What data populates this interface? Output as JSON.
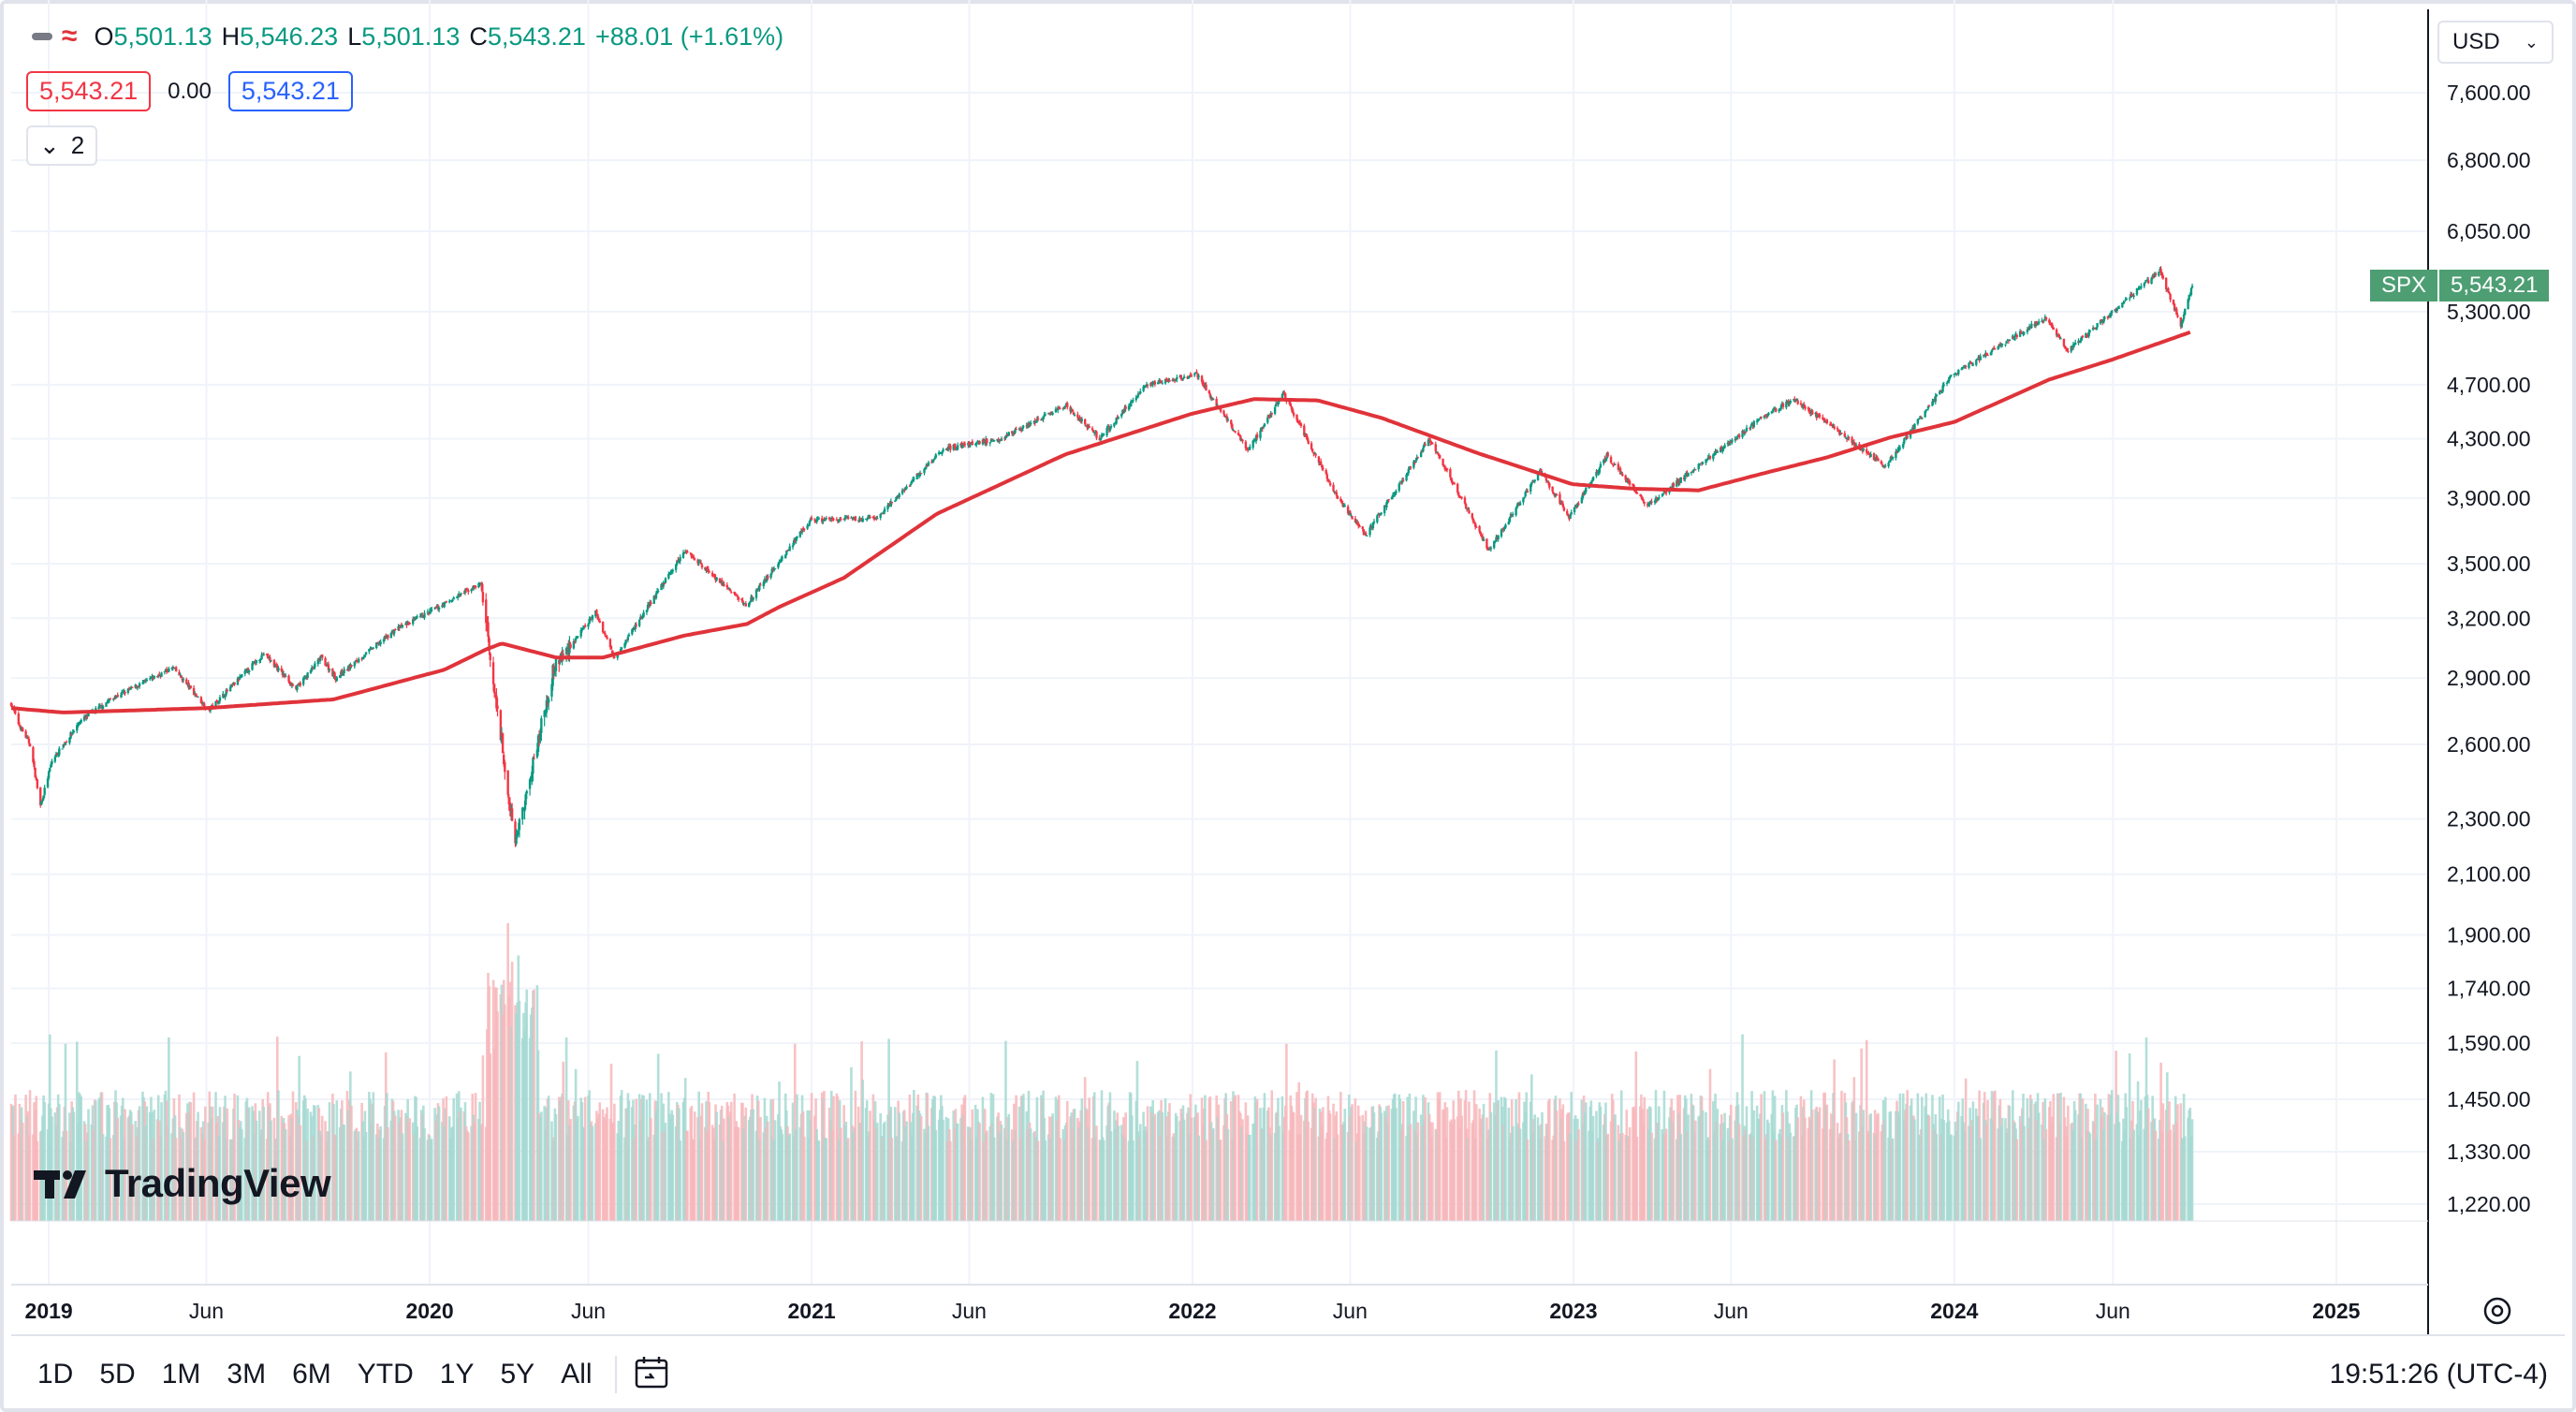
{
  "ohlc": {
    "open_label": "O",
    "open": "5,501.13",
    "high_label": "H",
    "high": "5,546.23",
    "low_label": "L",
    "low": "5,501.13",
    "close_label": "C",
    "close": "5,543.21",
    "change": "+88.01 (+1.61%)"
  },
  "indicator_values": {
    "red": "5,543.21",
    "middle": "0.00",
    "blue": "5,543.21"
  },
  "collapse": {
    "count": "2"
  },
  "currency": "USD",
  "price_badge": {
    "symbol": "SPX",
    "price": "5,543.21"
  },
  "watermark": "TradingView",
  "range_buttons": [
    "1D",
    "5D",
    "1M",
    "3M",
    "6M",
    "YTD",
    "1Y",
    "5Y",
    "All"
  ],
  "clock": "19:51:26 (UTC-4)",
  "colors": {
    "up": "#089981",
    "down": "#f23645",
    "ma": "#e0333a",
    "vol_up": "#a6d9d2",
    "vol_down": "#f7b7bb",
    "badge": "#4e9e73"
  },
  "chart_data": {
    "type": "candlestick",
    "symbol": "SPX",
    "scale": "log",
    "y_ticks": [
      7600,
      6800,
      6050,
      5300,
      4700,
      4300,
      3900,
      3500,
      3200,
      2900,
      2600,
      2300,
      2100,
      1900,
      1740,
      1590,
      1450,
      1330,
      1220
    ],
    "y_tick_labels": [
      "7,600.00",
      "6,800.00",
      "6,050.00",
      "5,300.00",
      "4,700.00",
      "4,300.00",
      "3,900.00",
      "3,500.00",
      "3,200.00",
      "2,900.00",
      "2,600.00",
      "2,300.00",
      "2,100.00",
      "1,900.00",
      "1,740.00",
      "1,590.00",
      "1,450.00",
      "1,330.00",
      "1,220.00"
    ],
    "x_ticks": [
      {
        "date": "2019-01-01",
        "label": "2019",
        "bold": true
      },
      {
        "date": "2019-06-01",
        "label": "Jun",
        "bold": false
      },
      {
        "date": "2020-01-01",
        "label": "2020",
        "bold": true
      },
      {
        "date": "2020-06-01",
        "label": "Jun",
        "bold": false
      },
      {
        "date": "2021-01-01",
        "label": "2021",
        "bold": true
      },
      {
        "date": "2021-06-01",
        "label": "Jun",
        "bold": false
      },
      {
        "date": "2022-01-01",
        "label": "2022",
        "bold": true
      },
      {
        "date": "2022-06-01",
        "label": "Jun",
        "bold": false
      },
      {
        "date": "2023-01-01",
        "label": "2023",
        "bold": true
      },
      {
        "date": "2023-06-01",
        "label": "Jun",
        "bold": false
      },
      {
        "date": "2024-01-01",
        "label": "2024",
        "bold": true
      },
      {
        "date": "2024-06-01",
        "label": "Jun",
        "bold": false
      },
      {
        "date": "2025-01-01",
        "label": "2025",
        "bold": true
      }
    ],
    "x_range": [
      "2018-11-26",
      "2025-03-30"
    ],
    "price_path": [
      [
        "2018-11-26",
        2780
      ],
      [
        "2018-12-03",
        2690
      ],
      [
        "2018-12-14",
        2600
      ],
      [
        "2018-12-24",
        2350
      ],
      [
        "2019-01-04",
        2530
      ],
      [
        "2019-01-31",
        2700
      ],
      [
        "2019-03-01",
        2800
      ],
      [
        "2019-04-30",
        2950
      ],
      [
        "2019-06-03",
        2750
      ],
      [
        "2019-07-26",
        3020
      ],
      [
        "2019-08-26",
        2850
      ],
      [
        "2019-09-19",
        3000
      ],
      [
        "2019-10-03",
        2900
      ],
      [
        "2019-11-29",
        3140
      ],
      [
        "2019-12-31",
        3230
      ],
      [
        "2020-02-19",
        3390
      ],
      [
        "2020-03-23",
        2200
      ],
      [
        "2020-04-29",
        2950
      ],
      [
        "2020-06-08",
        3230
      ],
      [
        "2020-06-26",
        3000
      ],
      [
        "2020-09-02",
        3580
      ],
      [
        "2020-10-30",
        3270
      ],
      [
        "2020-12-31",
        3760
      ],
      [
        "2021-03-04",
        3770
      ],
      [
        "2021-05-07",
        4230
      ],
      [
        "2021-06-30",
        4300
      ],
      [
        "2021-09-02",
        4540
      ],
      [
        "2021-10-04",
        4300
      ],
      [
        "2021-11-18",
        4700
      ],
      [
        "2021-12-31",
        4770
      ],
      [
        "2022-01-03",
        4800
      ],
      [
        "2022-02-23",
        4220
      ],
      [
        "2022-03-29",
        4630
      ],
      [
        "2022-05-20",
        3900
      ],
      [
        "2022-06-16",
        3670
      ],
      [
        "2022-08-16",
        4300
      ],
      [
        "2022-10-12",
        3580
      ],
      [
        "2022-11-30",
        4080
      ],
      [
        "2022-12-28",
        3780
      ],
      [
        "2023-02-02",
        4180
      ],
      [
        "2023-03-13",
        3855
      ],
      [
        "2023-06-30",
        4450
      ],
      [
        "2023-07-31",
        4590
      ],
      [
        "2023-10-27",
        4110
      ],
      [
        "2023-12-29",
        4770
      ],
      [
        "2024-03-28",
        5250
      ],
      [
        "2024-04-19",
        4970
      ],
      [
        "2024-07-16",
        5670
      ],
      [
        "2024-08-05",
        5180
      ],
      [
        "2024-08-16",
        5543
      ]
    ],
    "ma_path": [
      [
        "2018-11-26",
        2760
      ],
      [
        "2019-01-15",
        2740
      ],
      [
        "2019-06-01",
        2760
      ],
      [
        "2019-10-01",
        2800
      ],
      [
        "2020-01-15",
        2940
      ],
      [
        "2020-02-24",
        3040
      ],
      [
        "2020-03-10",
        3070
      ],
      [
        "2020-05-01",
        3000
      ],
      [
        "2020-06-15",
        3000
      ],
      [
        "2020-09-01",
        3110
      ],
      [
        "2020-10-31",
        3170
      ],
      [
        "2020-12-01",
        3260
      ],
      [
        "2021-02-01",
        3420
      ],
      [
        "2021-05-01",
        3800
      ],
      [
        "2021-09-01",
        4190
      ],
      [
        "2021-12-31",
        4480
      ],
      [
        "2022-03-01",
        4590
      ],
      [
        "2022-05-01",
        4580
      ],
      [
        "2022-07-01",
        4450
      ],
      [
        "2022-10-01",
        4200
      ],
      [
        "2022-12-31",
        3990
      ],
      [
        "2023-03-01",
        3960
      ],
      [
        "2023-05-01",
        3950
      ],
      [
        "2023-07-01",
        4060
      ],
      [
        "2023-09-01",
        4170
      ],
      [
        "2023-11-01",
        4310
      ],
      [
        "2024-01-01",
        4420
      ],
      [
        "2024-04-01",
        4740
      ],
      [
        "2024-06-01",
        4900
      ],
      [
        "2024-08-16",
        5130
      ]
    ],
    "volume_ticks": "volume histogram without numeric scale (bars colored by candle direction)"
  }
}
